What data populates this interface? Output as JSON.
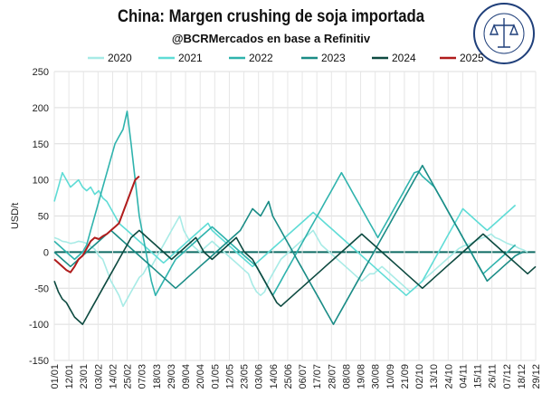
{
  "header": {
    "title": "China: Margen crushing de soja importada",
    "subtitle": "@BCRMercados en base a Refinitiv",
    "logo_text": "BOLSA DE COMERCIO DE ROSARIO"
  },
  "chart_data": {
    "type": "line",
    "ylabel": "USD/t",
    "ylim": [
      -150,
      250
    ],
    "yticks": [
      -150,
      -100,
      -50,
      0,
      50,
      100,
      150,
      200,
      250
    ],
    "xticks": [
      "01/01",
      "12/01",
      "23/01",
      "03/02",
      "14/02",
      "25/02",
      "07/03",
      "18/03",
      "29/03",
      "09/04",
      "20/04",
      "01/05",
      "12/05",
      "23/05",
      "03/06",
      "14/06",
      "25/06",
      "06/07",
      "17/07",
      "28/07",
      "08/08",
      "19/08",
      "30/08",
      "10/09",
      "21/09",
      "02/10",
      "13/10",
      "24/10",
      "04/11",
      "15/11",
      "26/11",
      "07/12",
      "18/12",
      "29/12"
    ],
    "grid": true,
    "legend_position": "top",
    "series": [
      {
        "name": "2020",
        "color": "#a8ebe6",
        "values": [
          20,
          18,
          15,
          14,
          12,
          13,
          15,
          14,
          12,
          8,
          4,
          -5,
          -10,
          -25,
          -40,
          -50,
          -60,
          -75,
          -65,
          -55,
          -45,
          -35,
          -30,
          -20,
          -20,
          -10,
          0,
          10,
          20,
          30,
          40,
          50,
          30,
          20,
          10,
          5,
          0,
          5,
          10,
          15,
          10,
          5,
          0,
          -5,
          -10,
          -15,
          -20,
          -25,
          -30,
          -45,
          -55,
          -60,
          -55,
          -40,
          -30,
          -20,
          -10,
          -5,
          0,
          5,
          10,
          15,
          20,
          25,
          30,
          20,
          10,
          5,
          0,
          -5,
          -10,
          -15,
          -20,
          -25,
          -30,
          -35,
          -40,
          -35,
          -30,
          -30,
          -25,
          -20,
          -25,
          -30,
          -35,
          -40,
          -45,
          -50,
          -55,
          -50,
          -45,
          -40,
          -35,
          -30,
          -25,
          -20,
          -15,
          -10,
          -5,
          0,
          5,
          8,
          10,
          12,
          15,
          18,
          20,
          22,
          25,
          20,
          18,
          15,
          12,
          10,
          8,
          5,
          3,
          0
        ]
      },
      {
        "name": "2021",
        "color": "#5fdcd6",
        "values": [
          70,
          90,
          110,
          100,
          90,
          95,
          100,
          90,
          85,
          90,
          80,
          85,
          75,
          70,
          60,
          50,
          40,
          35,
          30,
          25,
          20,
          15,
          10,
          5,
          0,
          -5,
          -10,
          -15,
          -10,
          -5,
          0,
          5,
          10,
          15,
          20,
          25,
          30,
          35,
          40,
          30,
          25,
          20,
          15,
          10,
          5,
          0,
          -5,
          -10,
          -15,
          -20,
          -15,
          -10,
          -5,
          0,
          5,
          10,
          15,
          20,
          25,
          30,
          35,
          40,
          45,
          50,
          55,
          50,
          45,
          40,
          35,
          30,
          25,
          20,
          15,
          10,
          5,
          0,
          -5,
          -10,
          -15,
          -20,
          -25,
          -30,
          -35,
          -40,
          -45,
          -50,
          -55,
          -60,
          -55,
          -50,
          -45,
          -40,
          -30,
          -20,
          -10,
          0,
          10,
          20,
          30,
          40,
          50,
          60,
          55,
          50,
          45,
          40,
          35,
          30,
          35,
          40,
          45,
          50,
          55,
          60,
          65
        ]
      },
      {
        "name": "2022",
        "color": "#2fb3ad",
        "values": [
          15,
          10,
          5,
          0,
          -5,
          -10,
          -5,
          0,
          10,
          30,
          50,
          70,
          90,
          110,
          130,
          150,
          160,
          170,
          195,
          150,
          100,
          50,
          20,
          -10,
          -40,
          -60,
          -50,
          -40,
          -30,
          -20,
          -10,
          -5,
          0,
          5,
          10,
          15,
          20,
          25,
          30,
          35,
          30,
          25,
          20,
          15,
          10,
          5,
          0,
          -5,
          -10,
          -15,
          -20,
          -30,
          -40,
          -50,
          -60,
          -50,
          -40,
          -30,
          -20,
          -10,
          0,
          10,
          20,
          30,
          40,
          50,
          60,
          70,
          80,
          90,
          100,
          110,
          100,
          90,
          80,
          70,
          60,
          50,
          40,
          30,
          20,
          30,
          40,
          50,
          60,
          70,
          80,
          90,
          100,
          110,
          112,
          105,
          100,
          95,
          90,
          80,
          70,
          60,
          50,
          40,
          30,
          20,
          10,
          0,
          -10,
          -20,
          -30,
          -25,
          -20,
          -15,
          -10,
          -5,
          0,
          5,
          10
        ]
      },
      {
        "name": "2023",
        "color": "#1a8c86",
        "values": [
          0,
          -5,
          -10,
          -15,
          -20,
          -15,
          -10,
          -5,
          0,
          5,
          10,
          15,
          20,
          25,
          30,
          25,
          20,
          15,
          10,
          5,
          0,
          -5,
          -10,
          -15,
          -20,
          -25,
          -30,
          -35,
          -40,
          -45,
          -50,
          -45,
          -40,
          -35,
          -30,
          -25,
          -20,
          -15,
          -10,
          -5,
          0,
          5,
          10,
          15,
          20,
          25,
          30,
          40,
          50,
          60,
          55,
          50,
          60,
          70,
          50,
          40,
          30,
          20,
          10,
          0,
          -10,
          -20,
          -30,
          -40,
          -50,
          -60,
          -70,
          -80,
          -90,
          -100,
          -90,
          -80,
          -70,
          -60,
          -50,
          -40,
          -30,
          -20,
          -10,
          0,
          10,
          20,
          30,
          40,
          50,
          60,
          70,
          80,
          90,
          100,
          110,
          120,
          110,
          100,
          90,
          80,
          70,
          60,
          50,
          40,
          30,
          20,
          10,
          0,
          -10,
          -20,
          -30,
          -40,
          -35,
          -30,
          -25,
          -20,
          -15,
          -10,
          -5,
          -2,
          0
        ]
      },
      {
        "name": "2024",
        "color": "#0d4a40",
        "values": [
          -40,
          -55,
          -65,
          -70,
          -80,
          -90,
          -95,
          -100,
          -90,
          -80,
          -70,
          -60,
          -50,
          -40,
          -30,
          -20,
          -10,
          0,
          10,
          20,
          25,
          30,
          25,
          20,
          15,
          10,
          5,
          0,
          -5,
          -10,
          -5,
          0,
          5,
          10,
          15,
          20,
          10,
          0,
          -5,
          -10,
          -5,
          0,
          5,
          10,
          15,
          20,
          10,
          0,
          -5,
          -10,
          -20,
          -30,
          -40,
          -50,
          -60,
          -70,
          -75,
          -70,
          -65,
          -60,
          -55,
          -50,
          -45,
          -40,
          -35,
          -30,
          -25,
          -20,
          -15,
          -10,
          -5,
          0,
          5,
          10,
          15,
          20,
          25,
          20,
          15,
          10,
          5,
          0,
          -5,
          -10,
          -15,
          -20,
          -25,
          -30,
          -35,
          -40,
          -45,
          -50,
          -45,
          -40,
          -35,
          -30,
          -25,
          -20,
          -15,
          -10,
          -5,
          0,
          5,
          10,
          15,
          20,
          25,
          20,
          15,
          10,
          5,
          0,
          -5,
          -10,
          -15,
          -20,
          -25,
          -30,
          -25,
          -20
        ]
      },
      {
        "name": "2025",
        "color": "#b01c1c",
        "values": [
          -10,
          -15,
          -20,
          -25,
          -28,
          -20,
          -10,
          -5,
          5,
          15,
          20,
          18,
          22,
          25,
          30,
          35,
          40,
          55,
          70,
          85,
          100,
          105
        ]
      }
    ]
  }
}
